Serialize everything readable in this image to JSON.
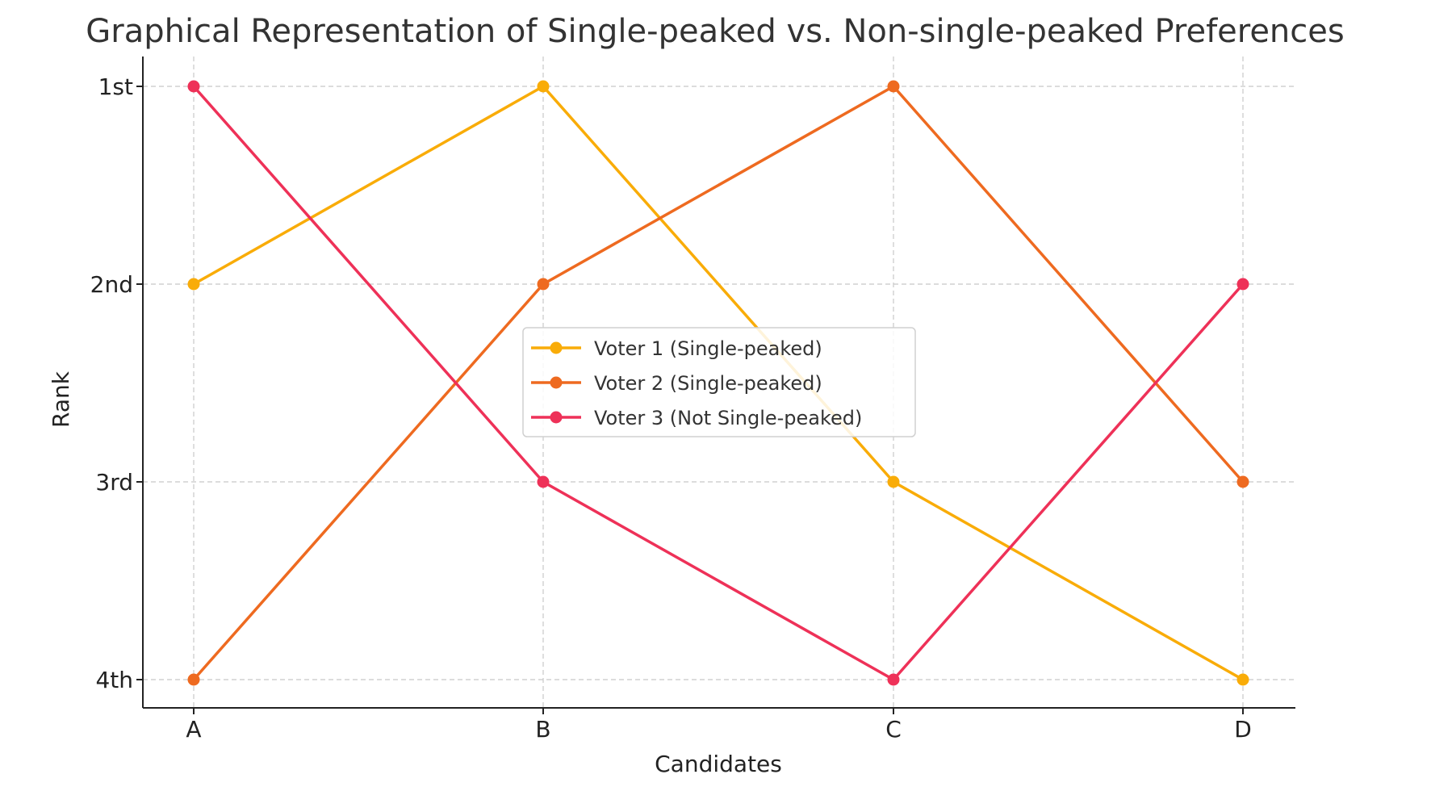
{
  "chart_data": {
    "type": "line",
    "title": "Graphical Representation of Single-peaked vs. Non-single-peaked Preferences",
    "xlabel": "Candidates",
    "ylabel": "Rank",
    "categories": [
      "A",
      "B",
      "C",
      "D"
    ],
    "yticks": [
      {
        "value": 1,
        "label": "1st"
      },
      {
        "value": 2,
        "label": "2nd"
      },
      {
        "value": 3,
        "label": "3rd"
      },
      {
        "value": 4,
        "label": "4th"
      }
    ],
    "ylim": [
      4.15,
      0.85
    ],
    "y_inverted": true,
    "grid": true,
    "legend_position": "center",
    "series": [
      {
        "name": "Voter 1 (Single-peaked)",
        "color": "#F9AC08",
        "values": [
          2,
          1,
          3,
          4
        ]
      },
      {
        "name": "Voter 2 (Single-peaked)",
        "color": "#EE6A20",
        "values": [
          4,
          2,
          1,
          3
        ]
      },
      {
        "name": "Voter 3 (Not Single-peaked)",
        "color": "#EE3158",
        "values": [
          1,
          3,
          4,
          2
        ]
      }
    ]
  }
}
